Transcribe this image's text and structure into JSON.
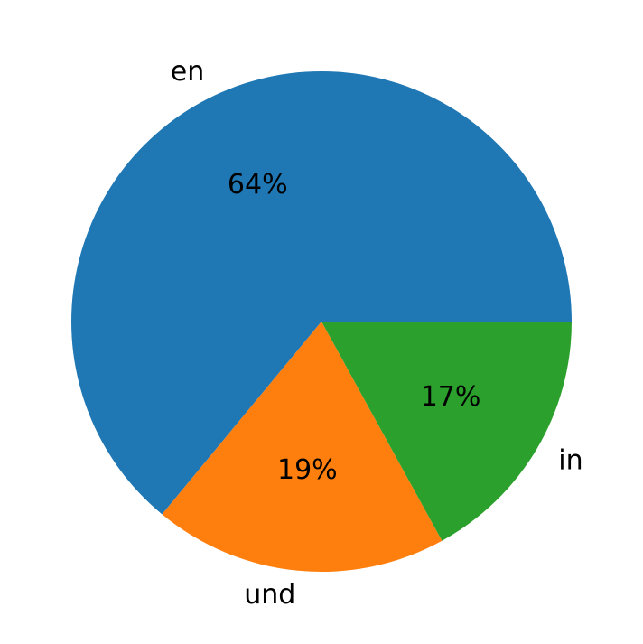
{
  "chart_data": {
    "type": "pie",
    "categories": [
      "en",
      "und",
      "in"
    ],
    "values": [
      64,
      19,
      17
    ],
    "value_labels": [
      "64%",
      "19%",
      "17%"
    ],
    "colors": [
      "#1f77b4",
      "#ff7f0e",
      "#2ca02c"
    ]
  }
}
